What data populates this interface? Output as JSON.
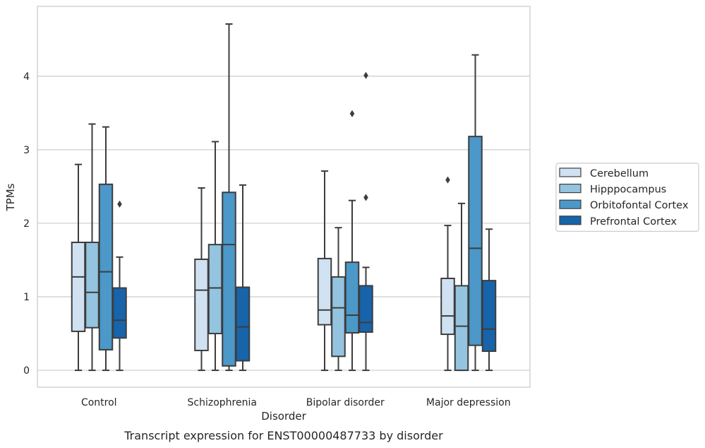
{
  "chart_data": {
    "type": "box",
    "caption": "Transcript expression for ENST00000487733 by disorder",
    "xlabel": "Disorder",
    "ylabel": "TPMs",
    "ylim": [
      -0.23,
      4.95
    ],
    "yticks": [
      0,
      1,
      2,
      3,
      4
    ],
    "grid": true,
    "legend_position": "right",
    "categories": [
      "Control",
      "Schizophrenia",
      "Bipolar disorder",
      "Major depression"
    ],
    "series": [
      {
        "name": "Cerebellum",
        "color": "#d0e1f2",
        "boxes": [
          {
            "whislo": 0.0,
            "q1": 0.53,
            "med": 1.27,
            "q3": 1.74,
            "whishi": 2.8,
            "fliers": []
          },
          {
            "whislo": 0.0,
            "q1": 0.27,
            "med": 1.09,
            "q3": 1.51,
            "whishi": 2.48,
            "fliers": []
          },
          {
            "whislo": 0.0,
            "q1": 0.62,
            "med": 0.82,
            "q3": 1.52,
            "whishi": 2.71,
            "fliers": []
          },
          {
            "whislo": 0.0,
            "q1": 0.49,
            "med": 0.74,
            "q3": 1.25,
            "whishi": 1.97,
            "fliers": [
              2.59
            ]
          }
        ]
      },
      {
        "name": "Hipppocampus",
        "color": "#94c4df",
        "boxes": [
          {
            "whislo": 0.0,
            "q1": 0.58,
            "med": 1.06,
            "q3": 1.74,
            "whishi": 3.35,
            "fliers": []
          },
          {
            "whislo": 0.0,
            "q1": 0.5,
            "med": 1.12,
            "q3": 1.71,
            "whishi": 3.11,
            "fliers": []
          },
          {
            "whislo": 0.0,
            "q1": 0.19,
            "med": 0.85,
            "q3": 1.27,
            "whishi": 1.94,
            "fliers": []
          },
          {
            "whislo": 0.0,
            "q1": 0.0,
            "med": 0.6,
            "q3": 1.15,
            "whishi": 2.27,
            "fliers": []
          }
        ]
      },
      {
        "name": "Orbitofontal Cortex",
        "color": "#4b98c9",
        "boxes": [
          {
            "whislo": 0.0,
            "q1": 0.28,
            "med": 1.34,
            "q3": 2.53,
            "whishi": 3.31,
            "fliers": []
          },
          {
            "whislo": 0.0,
            "q1": 0.06,
            "med": 1.71,
            "q3": 2.42,
            "whishi": 4.71,
            "fliers": []
          },
          {
            "whislo": 0.0,
            "q1": 0.51,
            "med": 0.75,
            "q3": 1.47,
            "whishi": 2.31,
            "fliers": [
              3.49
            ]
          },
          {
            "whislo": 0.0,
            "q1": 0.34,
            "med": 1.66,
            "q3": 3.18,
            "whishi": 4.29,
            "fliers": []
          }
        ]
      },
      {
        "name": "Prefrontal Cortex",
        "color": "#1764ab",
        "boxes": [
          {
            "whislo": 0.0,
            "q1": 0.44,
            "med": 0.68,
            "q3": 1.12,
            "whishi": 1.54,
            "fliers": [
              2.26
            ]
          },
          {
            "whislo": 0.0,
            "q1": 0.13,
            "med": 0.59,
            "q3": 1.13,
            "whishi": 2.52,
            "fliers": []
          },
          {
            "whislo": 0.0,
            "q1": 0.52,
            "med": 0.65,
            "q3": 1.15,
            "whishi": 1.4,
            "fliers": [
              2.35,
              4.01
            ]
          },
          {
            "whislo": 0.0,
            "q1": 0.26,
            "med": 0.56,
            "q3": 1.22,
            "whishi": 1.92,
            "fliers": []
          }
        ]
      }
    ],
    "colors": {
      "frame": "#cccccc",
      "grid": "#cccccc",
      "line": "#3d3d3d"
    }
  }
}
